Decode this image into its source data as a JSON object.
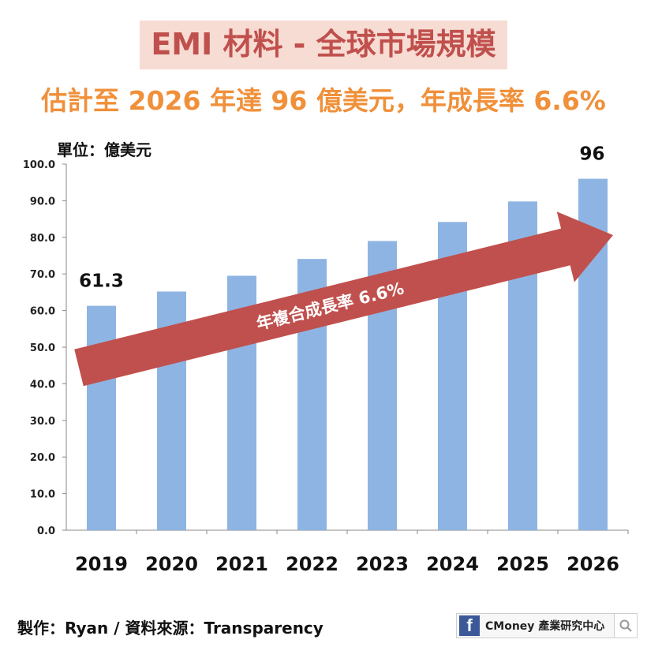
{
  "header": {
    "title": "EMI 材料 - 全球市場規模",
    "subtitle": "估計至 2026 年達 96 億美元，年成長率 6.6%"
  },
  "unit_label": "單位：億美元",
  "footer": {
    "credit": "製作：Ryan / 資料來源：Transparency",
    "brand_name": "CMoney 產業研究中心",
    "brand_icon": "facebook-icon",
    "search_icon": "search-icon"
  },
  "colors": {
    "bar": "#8eb4e3",
    "arrow": "#c0504d",
    "title_bg": "#f7dcd3",
    "title_text": "#c0504d",
    "subtitle_text": "#f0903a"
  },
  "chart_data": {
    "type": "bar",
    "categories": [
      "2019",
      "2020",
      "2021",
      "2022",
      "2023",
      "2024",
      "2025",
      "2026"
    ],
    "values": [
      61.3,
      65.2,
      69.5,
      74.1,
      79.0,
      84.2,
      89.8,
      96.0
    ],
    "data_labels": [
      {
        "index": 0,
        "text": "61.3"
      },
      {
        "index": 7,
        "text": "96"
      }
    ],
    "ylim": [
      0,
      100
    ],
    "yticks": [
      "0.0",
      "10.0",
      "20.0",
      "30.0",
      "40.0",
      "50.0",
      "60.0",
      "70.0",
      "80.0",
      "90.0",
      "100.0"
    ],
    "grid": false,
    "legend": "none",
    "annotation": "年複合成長率 6.6%"
  }
}
